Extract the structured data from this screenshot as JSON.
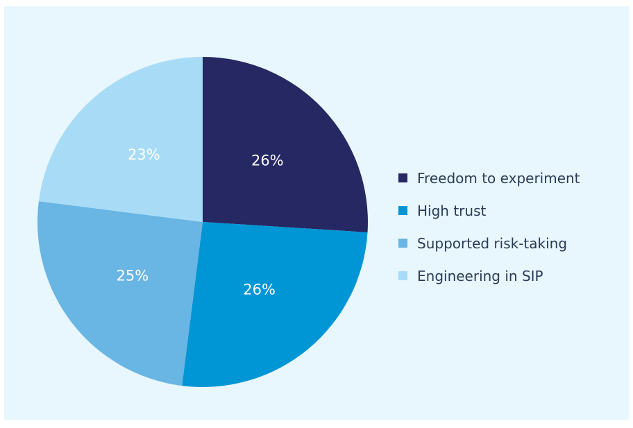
{
  "chart_data": {
    "type": "pie",
    "title": "",
    "slices": [
      {
        "label": "Freedom to experiment",
        "value": 26,
        "display": "26%",
        "color": "#252862"
      },
      {
        "label": "High trust",
        "value": 26,
        "display": "26%",
        "color": "#0096d6"
      },
      {
        "label": "Supported risk-taking",
        "value": 25,
        "display": "25%",
        "color": "#69b5e3"
      },
      {
        "label": "Engineering in SIP",
        "value": 23,
        "display": "23%",
        "color": "#a8dbf6"
      }
    ],
    "legend_position": "right"
  },
  "background_color": "#e8f6fd"
}
